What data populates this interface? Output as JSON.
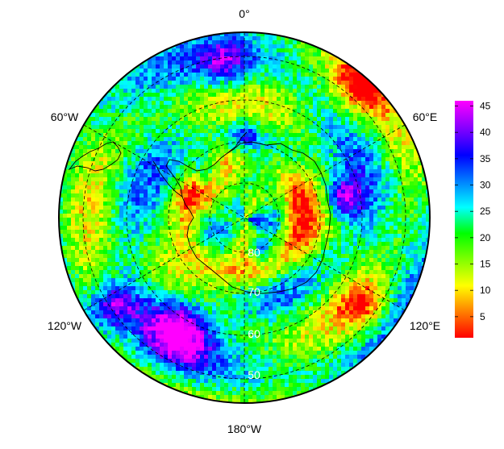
{
  "map": {
    "projection": "south polar stereographic",
    "longitude_labels": {
      "top": "0°",
      "upper_left": "60°W",
      "upper_right": "60°E",
      "lower_left": "120°W",
      "lower_right": "120°E",
      "bottom": "180°W"
    },
    "latitude_labels": [
      "80",
      "70",
      "60",
      "50"
    ],
    "graticule_style": "dashed black",
    "coastline_color": "#000000"
  },
  "colorbar": {
    "min": 1,
    "max": 46,
    "ticks": [
      "5",
      "10",
      "15",
      "20",
      "25",
      "30",
      "35",
      "40",
      "45"
    ],
    "colormap": [
      "#ff0000",
      "#ff8000",
      "#ffff00",
      "#80ff00",
      "#00ff00",
      "#00ffff",
      "#0080ff",
      "#0000ff",
      "#8000ff",
      "#ff00ff"
    ]
  }
}
